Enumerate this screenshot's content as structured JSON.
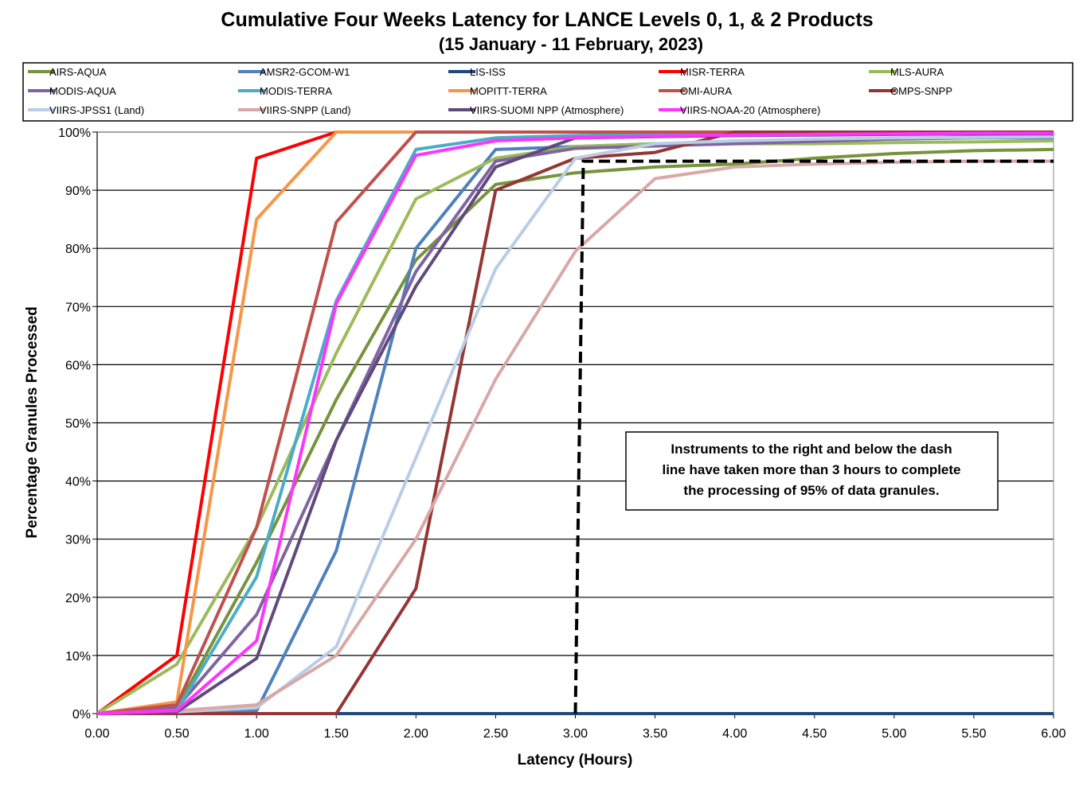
{
  "chart_data": {
    "type": "line",
    "title": "Cumulative Four Weeks Latency  for LANCE Levels 0, 1, & 2 Products",
    "subtitle": "(15  January   -  11  February,  2023)",
    "xlabel": "Latency (Hours)",
    "ylabel": "Percentage Granules Processed",
    "xlim": [
      0,
      6
    ],
    "ylim": [
      0,
      100
    ],
    "grid": "horizontal",
    "legend_position": "top",
    "x": [
      0,
      0.5,
      1,
      1.5,
      2,
      2.5,
      3,
      3.5,
      4,
      4.5,
      5,
      5.5,
      6
    ],
    "x_tick_labels": [
      "0.00",
      "0.50",
      "1.00",
      "1.50",
      "2.00",
      "2.50",
      "3.00",
      "3.50",
      "4.00",
      "4.50",
      "5.00",
      "5.50",
      "6.00"
    ],
    "y_tick_labels": [
      "0%",
      "10%",
      "20%",
      "30%",
      "40%",
      "50%",
      "60%",
      "70%",
      "80%",
      "90%",
      "100%"
    ],
    "series": [
      {
        "name": "AIRS-AQUA",
        "color": "#77933C",
        "values": [
          0,
          1,
          26,
          54,
          78,
          91,
          93,
          94,
          94.5,
          95.5,
          96.3,
          96.8,
          97
        ]
      },
      {
        "name": "AMSR2-GCOM-W1",
        "color": "#4F81BD",
        "values": [
          0,
          0.3,
          0.5,
          28,
          80,
          97,
          97.5,
          98,
          98.3,
          98.6,
          98.8,
          99,
          99
        ]
      },
      {
        "name": "LIS-ISS",
        "color": "#1F497D",
        "values": [
          0,
          0,
          0,
          0,
          0,
          0,
          0,
          0,
          0,
          0,
          0,
          0,
          0
        ]
      },
      {
        "name": "MISR-TERRA",
        "color": "#FF0000",
        "values": [
          0,
          10,
          95.5,
          100,
          100,
          100,
          100,
          100,
          100,
          100,
          100,
          100,
          100
        ]
      },
      {
        "name": "MLS-AURA",
        "color": "#9BBB59",
        "values": [
          0,
          8.5,
          32,
          62,
          88.5,
          95.5,
          97.5,
          98,
          98,
          98,
          98.2,
          98.3,
          98.5
        ]
      },
      {
        "name": "MODIS-AQUA",
        "color": "#8064A2",
        "values": [
          0,
          1,
          17,
          47,
          76,
          95,
          97.2,
          97.6,
          98,
          98.4,
          98.8,
          99.2,
          99.5
        ]
      },
      {
        "name": "MODIS-TERRA",
        "color": "#4BACC6",
        "values": [
          0,
          0.5,
          23.5,
          71,
          97,
          99,
          99.4,
          99.6,
          99.7,
          99.8,
          99.9,
          99.9,
          99.9
        ]
      },
      {
        "name": "MOPITT-TERRA",
        "color": "#F79646",
        "values": [
          0,
          2,
          85,
          100,
          100,
          100,
          100,
          100,
          100,
          100,
          100,
          100,
          100
        ]
      },
      {
        "name": "OMI-AURA",
        "color": "#C0504D",
        "values": [
          0,
          1.5,
          32,
          84.5,
          100,
          100,
          100,
          100,
          100,
          100,
          100,
          100,
          100
        ]
      },
      {
        "name": "OMPS-SNPP",
        "color": "#943634",
        "values": [
          0,
          0,
          0,
          0,
          21.5,
          90,
          95.5,
          96.5,
          100,
          100,
          100,
          100,
          100
        ]
      },
      {
        "name": "VIIRS-JPSS1 (Land)",
        "color": "#B9CDE5",
        "values": [
          0,
          0.3,
          1,
          11.5,
          44,
          76.5,
          95.5,
          98,
          98.5,
          98.8,
          99,
          99.1,
          99.2
        ]
      },
      {
        "name": "VIIRS-SNPP (Land)",
        "color": "#D9A8A6",
        "values": [
          0,
          0.5,
          1.5,
          10,
          30,
          57.5,
          79.5,
          92,
          94,
          94.5,
          94.8,
          95,
          95
        ]
      },
      {
        "name": "VIIRS-SUOMI NPP (Atmosphere)",
        "color": "#604A7B",
        "values": [
          0,
          0.3,
          9.5,
          47,
          73.5,
          94,
          99,
          99.2,
          99.4,
          99.5,
          99.6,
          99.7,
          99.7
        ]
      },
      {
        "name": "VIIRS-NOAA-20 (Atmosphere)",
        "color": "#FF33FF",
        "values": [
          0,
          0.5,
          12.5,
          70.5,
          96,
          98.5,
          99,
          99.3,
          99.5,
          99.6,
          99.7,
          99.8,
          99.8
        ]
      }
    ],
    "threshold_line": {
      "x": [
        3.0,
        3.05,
        6.0
      ],
      "y": [
        0,
        95,
        95
      ],
      "style": "dashed",
      "color": "#000000"
    },
    "annotation": {
      "lines": [
        "Instruments to the right and below the dash",
        "line have taken more than 3 hours to complete",
        "the processing of 95% of data granules."
      ]
    }
  }
}
